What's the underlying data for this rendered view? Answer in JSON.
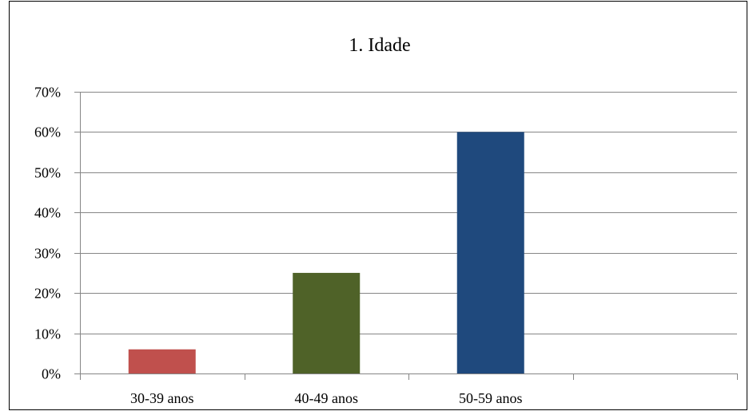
{
  "chart_data": {
    "type": "bar",
    "title": "1. Idade",
    "categories": [
      "30-39 anos",
      "40-49 anos",
      "50-59 anos",
      ""
    ],
    "values": [
      6,
      25,
      60,
      null
    ],
    "value_format": "percent",
    "colors": [
      "#C0504D",
      "#4F6228",
      "#1F497D"
    ],
    "ylim": [
      0,
      70
    ],
    "yticks": [
      "0%",
      "10%",
      "20%",
      "30%",
      "40%",
      "50%",
      "60%",
      "70%"
    ],
    "grid": true,
    "legend": "none"
  }
}
